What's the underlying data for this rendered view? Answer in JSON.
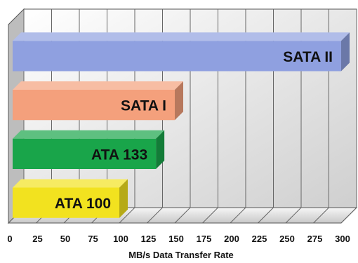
{
  "chart_data": {
    "type": "bar",
    "orientation": "horizontal",
    "style": "3d",
    "categories": [
      "SATA II",
      "SATA I",
      "ATA 133",
      "ATA 100"
    ],
    "values": [
      300,
      150,
      133,
      100
    ],
    "colors": [
      "#8fa0e0",
      "#f4a07c",
      "#19a54a",
      "#f2e21f"
    ],
    "xlabel": "MB/s Data Transfer Rate",
    "ylabel": "",
    "xlim": [
      0,
      300
    ],
    "ticks": [
      "0",
      "25",
      "50",
      "75",
      "100",
      "125",
      "150",
      "175",
      "200",
      "225",
      "250",
      "275",
      "300"
    ],
    "grid": true
  }
}
